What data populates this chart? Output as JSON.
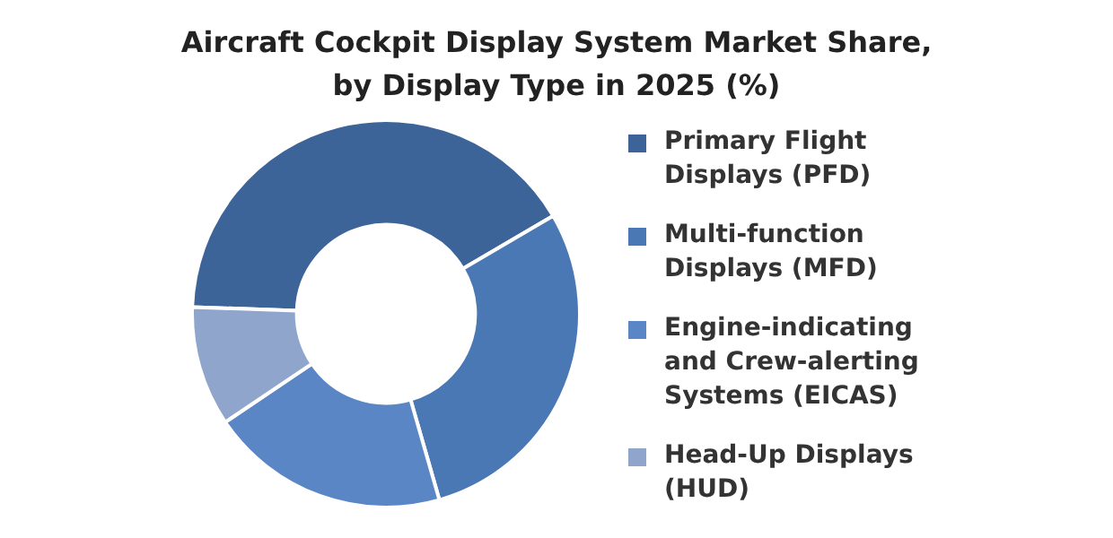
{
  "chart_data": {
    "type": "donut",
    "title": "Aircraft Cockpit Display System Market Share, by Display Type in 2025 (%)",
    "categories": [
      "Primary Flight Displays (PFD)",
      "Multi-function Displays (MFD)",
      "Engine-indicating and Crew-alerting Systems (EICAS)",
      "Head-Up Displays (HUD)"
    ],
    "values": [
      41,
      29,
      20,
      10
    ],
    "colors": [
      "#3d6499",
      "#4a78b5",
      "#5a86c6",
      "#8fa5cc"
    ],
    "legend": "right"
  }
}
